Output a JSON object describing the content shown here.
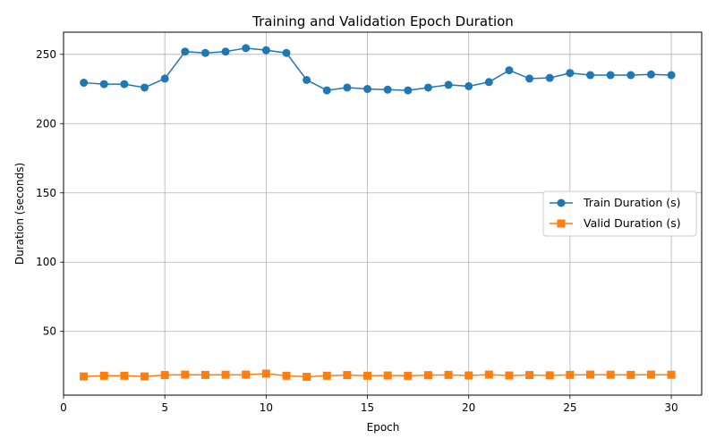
{
  "chart_data": {
    "type": "line",
    "title": "Training and Validation Epoch Duration",
    "xlabel": "Epoch",
    "ylabel": "Duration (seconds)",
    "xlim": [
      0,
      31.5
    ],
    "ylim": [
      4,
      266
    ],
    "xticks": [
      0,
      5,
      10,
      15,
      20,
      25,
      30
    ],
    "yticks": [
      50,
      100,
      150,
      200,
      250
    ],
    "grid": true,
    "legend_position": "center-right",
    "x": [
      1,
      2,
      3,
      4,
      5,
      6,
      7,
      8,
      9,
      10,
      11,
      12,
      13,
      14,
      15,
      16,
      17,
      18,
      19,
      20,
      21,
      22,
      23,
      24,
      25,
      26,
      27,
      28,
      29,
      30
    ],
    "series": [
      {
        "name": "Train Duration (s)",
        "color": "#1f77b4",
        "marker": "circle",
        "values": [
          229.5,
          228.5,
          228.5,
          226,
          232.5,
          252,
          251,
          252,
          254.5,
          253,
          251,
          231.5,
          224,
          226,
          225,
          224.5,
          224,
          226,
          228,
          227,
          230,
          238.5,
          232.5,
          233,
          236.5,
          235,
          235,
          235,
          235.5,
          235
        ]
      },
      {
        "name": "Valid Duration (s)",
        "color": "#ff7f0e",
        "marker": "square",
        "values": [
          17.5,
          18,
          18,
          17.5,
          18.5,
          18.8,
          18.6,
          18.7,
          18.8,
          19.5,
          18,
          17.2,
          18,
          18.5,
          18,
          18.2,
          18,
          18.4,
          18.6,
          18.2,
          18.8,
          18.2,
          18.5,
          18.3,
          18.6,
          18.8,
          18.7,
          18.6,
          18.8,
          18.7
        ]
      }
    ]
  }
}
